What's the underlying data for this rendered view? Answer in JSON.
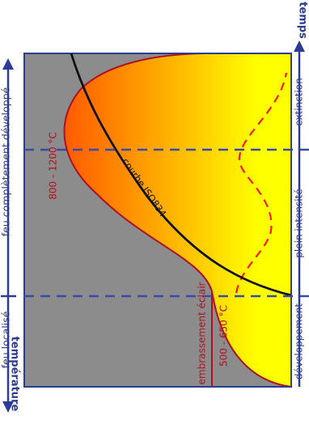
{
  "axis": {
    "x_label": "temps",
    "y_label": "température"
  },
  "phases": {
    "localise": "feu localisé",
    "developpe": "feu complètement développé",
    "developpement": "développement",
    "plein": "plein intensité",
    "extinction": "extinction"
  },
  "annotations": {
    "embrasement": "embrassement éclair",
    "temp_flashover": "500 - 650 °C",
    "temp_max": "800 - 1200 °C",
    "iso_curve": "courbe ISO834"
  },
  "colors": {
    "background": "#8c8c8c",
    "axis": "#2c3c92",
    "phase_line": "#3a4aa8",
    "fire_outline": "#b30f1f",
    "curve_dashed": "#ff1a1a",
    "iso": "#111111",
    "flame_inner": "#ff5a00",
    "flame_mid": "#ffb000",
    "flame_outer": "#ffff00"
  }
}
